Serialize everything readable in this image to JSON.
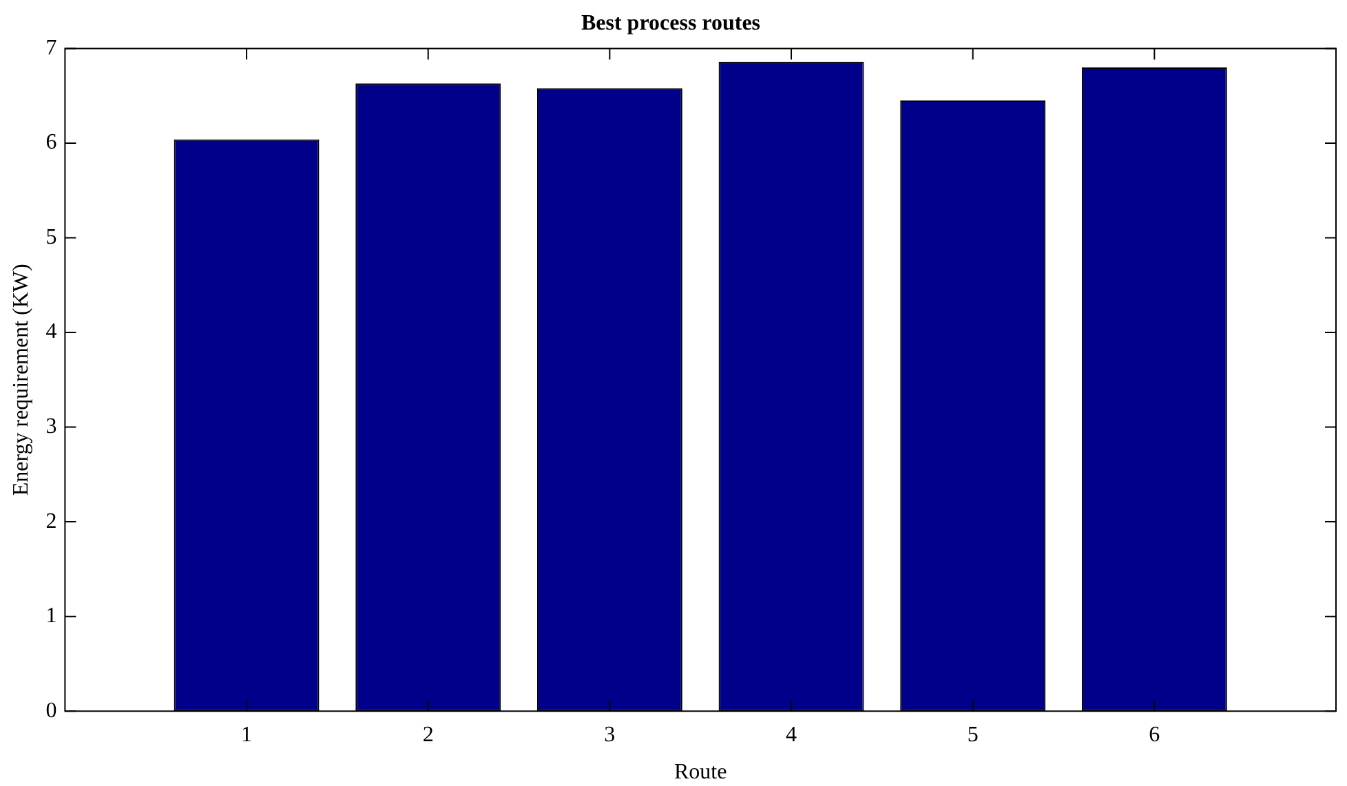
{
  "chart_data": {
    "type": "bar",
    "title": "Best process routes",
    "xlabel": "Route",
    "ylabel": "Energy requirement (KW)",
    "x": [
      1,
      2,
      3,
      4,
      5,
      6
    ],
    "values": [
      6.04,
      6.63,
      6.58,
      6.86,
      6.45,
      6.8
    ],
    "color": "#00008b",
    "xlim": [
      0,
      7
    ],
    "xticks": [
      1,
      2,
      3,
      4,
      5,
      6
    ],
    "ylim": [
      0,
      7
    ],
    "yticks": [
      0,
      1,
      2,
      3,
      4,
      5,
      6,
      7
    ],
    "grid": false,
    "legend": false
  }
}
